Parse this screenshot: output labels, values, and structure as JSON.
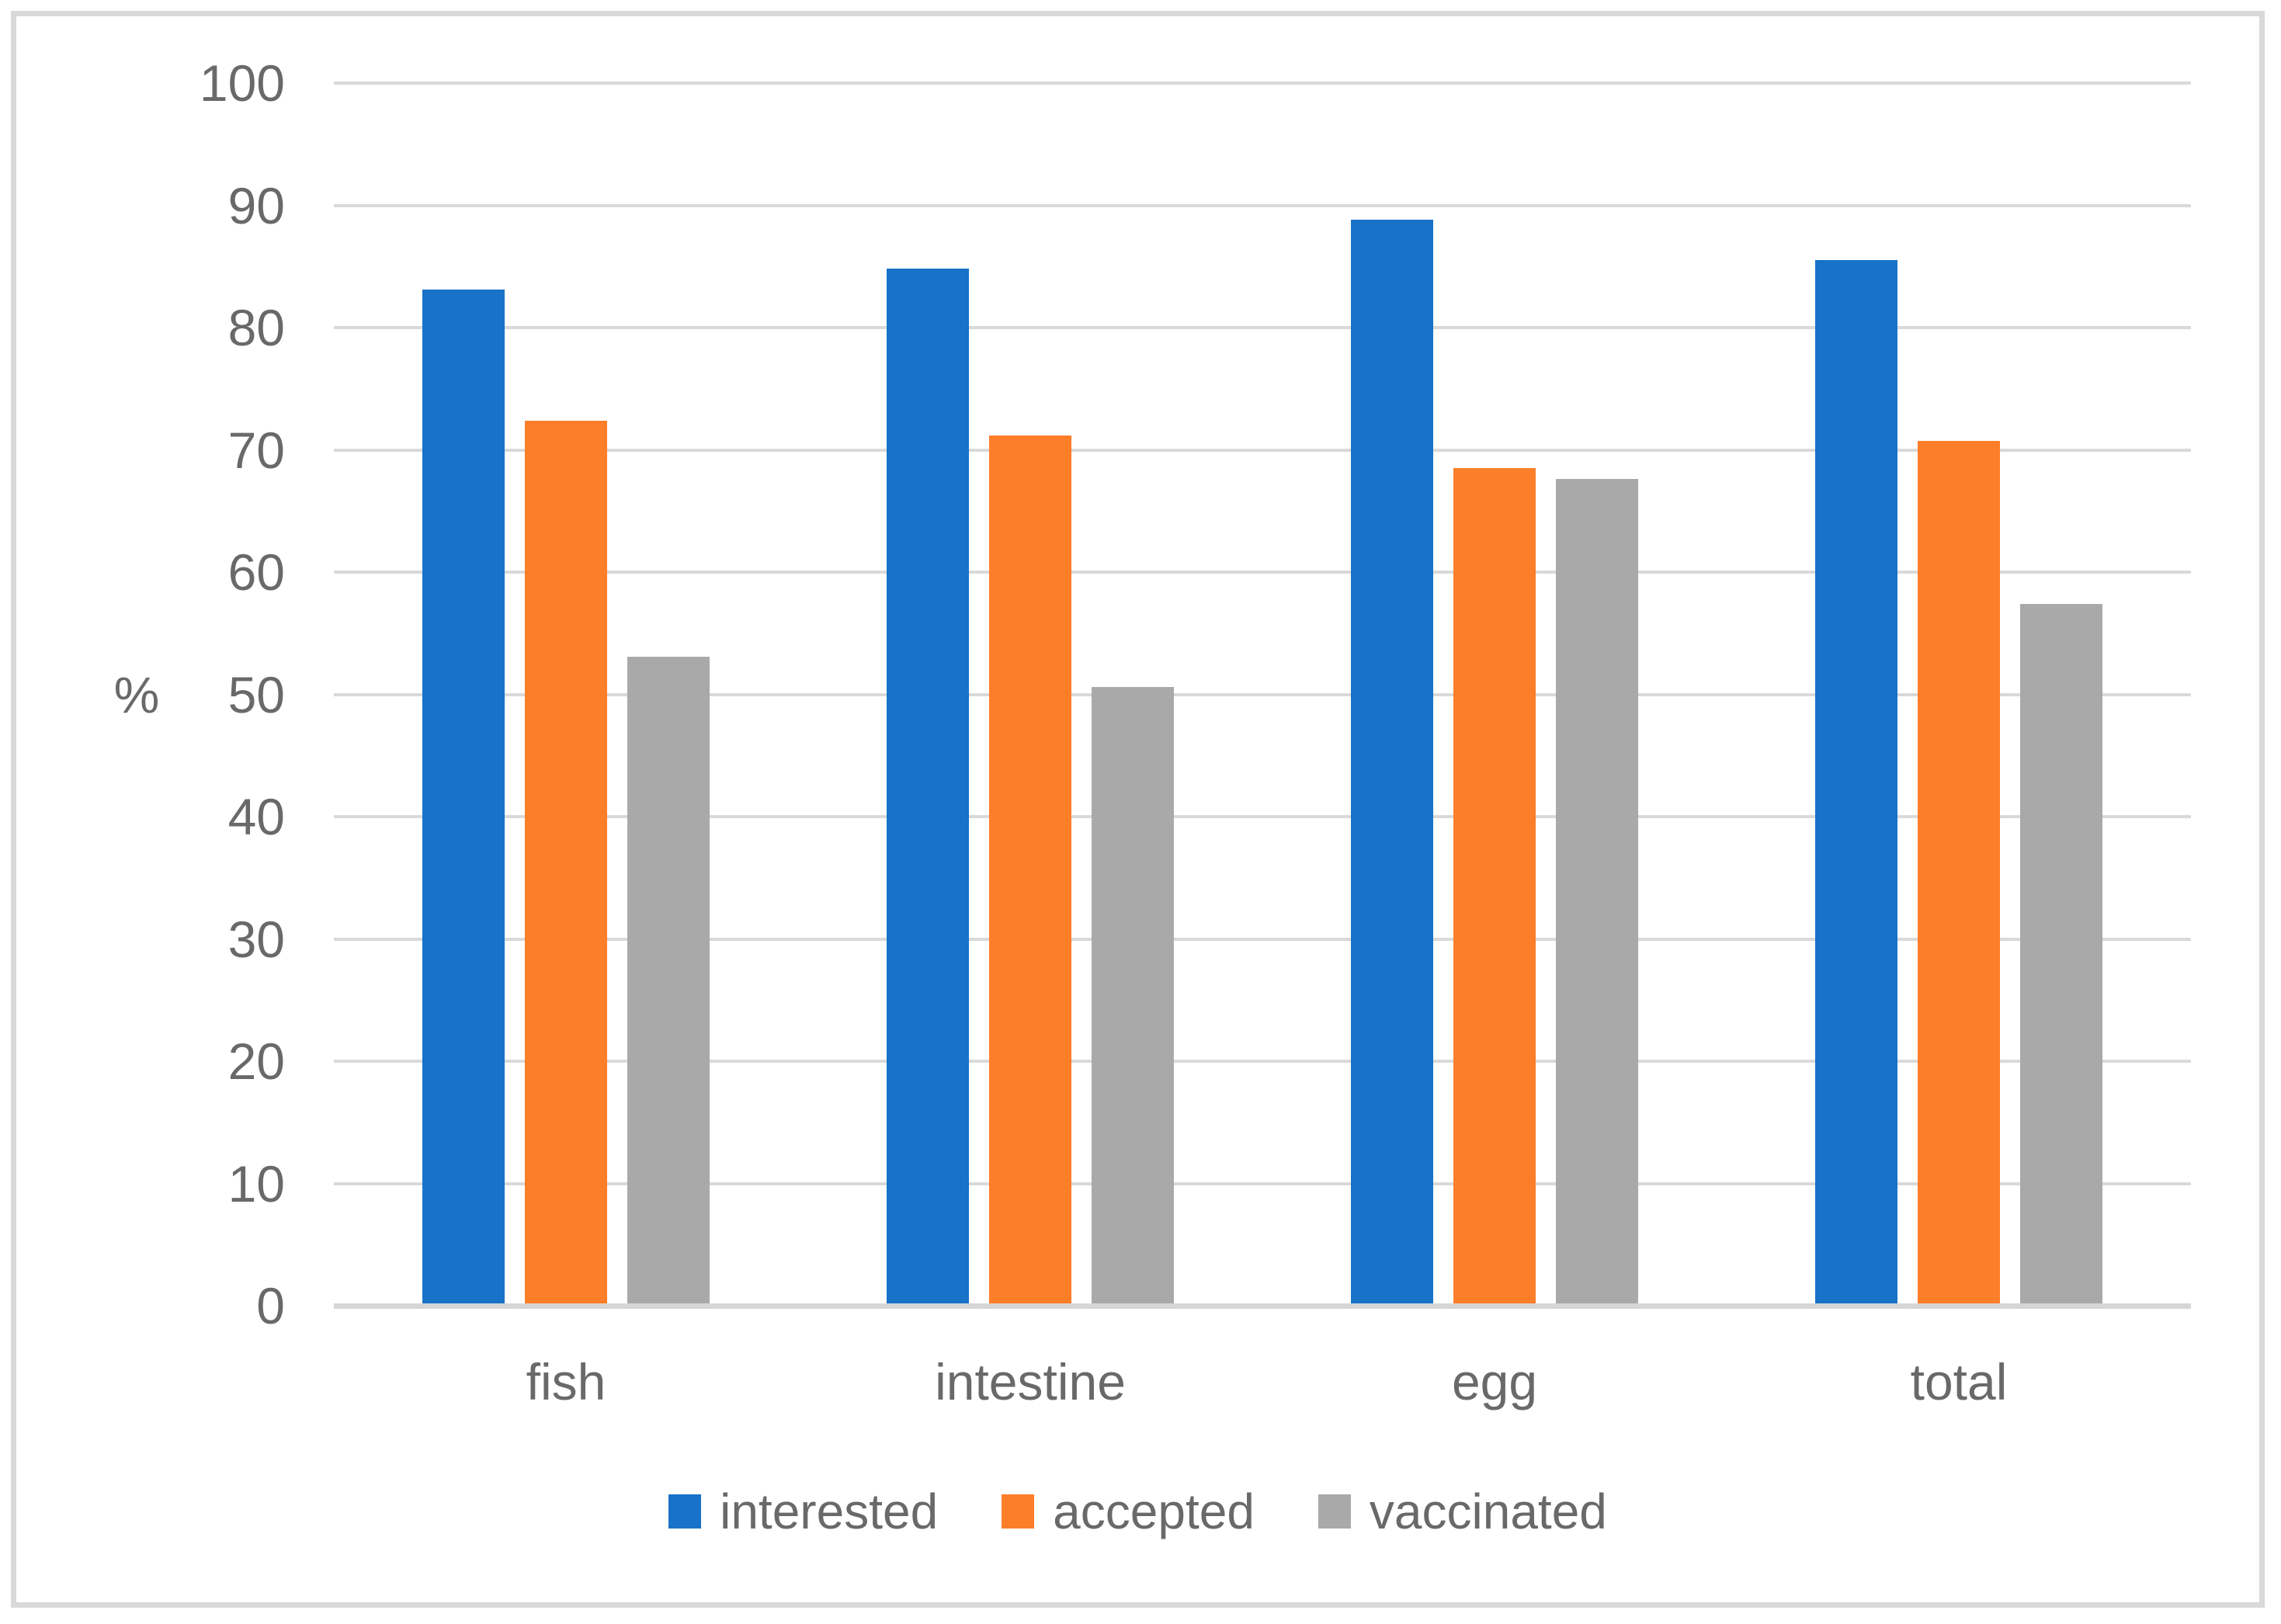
{
  "figure": {
    "background_color": "#FFFFFF",
    "border_color": "#D9D9D9",
    "text_color": "#696969",
    "gridline_color": "#D9D9D9",
    "axis_line_color": "#D6D6D6"
  },
  "chart_data": {
    "type": "bar",
    "title": "",
    "xlabel": "",
    "ylabel": "%",
    "categories": [
      "fish",
      "intestine",
      "egg",
      "total"
    ],
    "series": [
      {
        "name": "interested",
        "color": "#1772C8",
        "values": [
          83.1,
          84.8,
          88.8,
          85.5
        ]
      },
      {
        "name": "accepted",
        "color": "#FD7E28",
        "values": [
          72.4,
          71.2,
          68.5,
          70.7
        ]
      },
      {
        "name": "vaccinated",
        "color": "#A9A9A9",
        "values": [
          53.1,
          50.6,
          67.6,
          57.4
        ]
      }
    ],
    "ylim": [
      0,
      100
    ],
    "ytick_step": 10,
    "yticks": [
      0,
      10,
      20,
      30,
      40,
      50,
      60,
      70,
      80,
      90,
      100
    ],
    "grid": true,
    "legend_position": "bottom",
    "legend_labels": [
      "interested",
      "accepted",
      "vaccinated"
    ]
  }
}
